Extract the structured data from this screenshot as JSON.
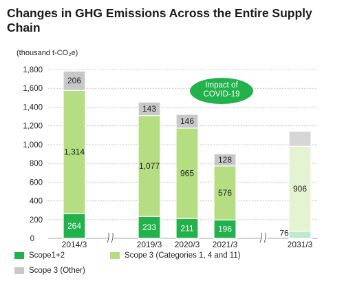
{
  "title": "Changes in GHG Emissions Across the Entire Supply Chain",
  "unit_label": "(thousand t-CO₂e)",
  "colors": {
    "scope12": "#22b24c",
    "scope3_cat": "#b5de82",
    "scope3_other": "#c8c8c8",
    "scope3_cat_target": "#e4f3d1",
    "scope12_target": "#bdeacb",
    "other_target": "#d6d6d6",
    "annotation_bg": "#22b24c",
    "annotation_text": "#ffffff"
  },
  "chart_data": {
    "type": "bar",
    "stacked": true,
    "categories": [
      "2014/3",
      "2019/3",
      "2020/3",
      "2021/3",
      "2031/3"
    ],
    "series": [
      {
        "name": "Scope1+2",
        "values": [
          264,
          233,
          211,
          196,
          76
        ]
      },
      {
        "name": "Scope 3 (Categories 1, 4 and 11)",
        "values": [
          1314,
          1077,
          965,
          576,
          906
        ]
      },
      {
        "name": "Scope 3 (Other)",
        "values": [
          206,
          143,
          146,
          128,
          160
        ]
      }
    ],
    "data_labels": [
      [
        "264",
        "233",
        "211",
        "196",
        "76"
      ],
      [
        "1,314",
        "1,077",
        "965",
        "576",
        "906"
      ],
      [
        "206",
        "143",
        "146",
        "128",
        ""
      ]
    ],
    "y_ticks": [
      "0",
      "200",
      "400",
      "600",
      "800",
      "1,000",
      "1,200",
      "1,400",
      "1,600",
      "1,800"
    ],
    "ylim": [
      0,
      1800
    ],
    "grid": true,
    "axis_breaks": true,
    "annotation": "Impact of\nCOVID-19",
    "legend": [
      {
        "name": "Scope1+2",
        "color": "#22b24c"
      },
      {
        "name": "Scope 3 (Categories 1, 4 and 11)",
        "color": "#b5de82"
      },
      {
        "name": "Scope 3 (Other)",
        "color": "#c8c8c8"
      }
    ],
    "legend_position": "bottom"
  }
}
